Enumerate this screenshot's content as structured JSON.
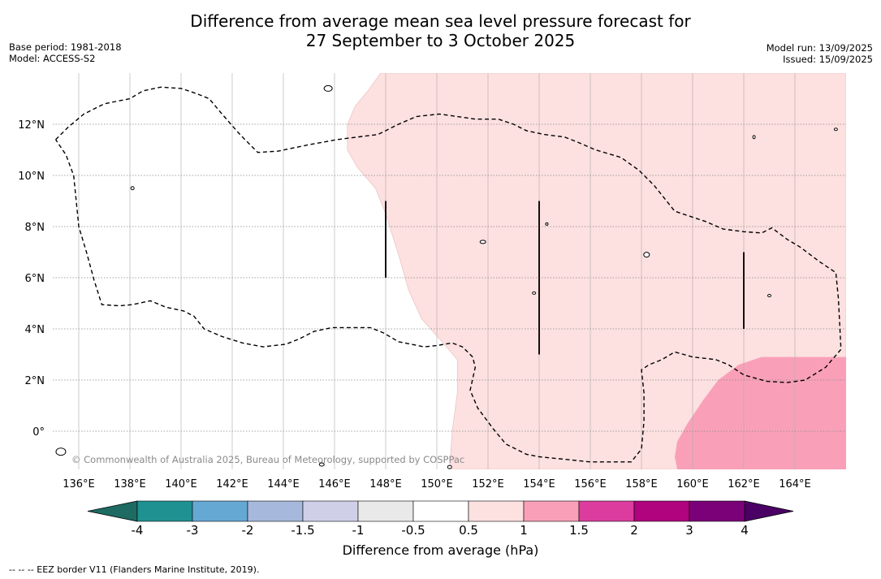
{
  "title": {
    "line1": "Difference from average mean sea level pressure forecast for",
    "line2": "27 September to 3 October 2025"
  },
  "meta_left": {
    "base_period": "Base period: 1981-2018",
    "model": "Model: ACCESS-S2"
  },
  "meta_right": {
    "model_run": "Model run: 13/09/2025",
    "issued": "Issued: 15/09/2025"
  },
  "map": {
    "lon_range": [
      135.0,
      166.0
    ],
    "lat_range": [
      -1.5,
      14.0
    ],
    "lon_ticks": [
      136,
      138,
      140,
      142,
      144,
      146,
      148,
      150,
      152,
      154,
      156,
      158,
      160,
      162,
      164
    ],
    "lon_tick_labels": [
      "136°E",
      "138°E",
      "140°E",
      "142°E",
      "144°E",
      "146°E",
      "148°E",
      "150°E",
      "152°E",
      "154°E",
      "156°E",
      "158°E",
      "160°E",
      "162°E",
      "164°E"
    ],
    "lat_ticks": [
      0,
      2,
      4,
      6,
      8,
      10,
      12
    ],
    "lat_tick_labels": [
      "0°",
      "2°N",
      "4°N",
      "6°N",
      "8°N",
      "10°N",
      "12°N"
    ],
    "grid": true,
    "copyright": "© Commonwealth of Australia 2025, Bureau of Meteorology, supported by COSPPac",
    "fill_colors": {
      "0.5_to_1": "#fde0e0",
      "1_to_1.5": "#f9a0b8"
    },
    "anomaly_region_0.5_to_1": [
      [
        147.8,
        14
      ],
      [
        166,
        14
      ],
      [
        166,
        -1.5
      ],
      [
        150.5,
        -1.5
      ],
      [
        150.6,
        0
      ],
      [
        150.8,
        1.5
      ],
      [
        150.8,
        2.8
      ],
      [
        150.2,
        3.5
      ],
      [
        149.4,
        4.4
      ],
      [
        148.9,
        5.5
      ],
      [
        148.5,
        6.9
      ],
      [
        148.0,
        8.5
      ],
      [
        147.6,
        9.5
      ],
      [
        146.9,
        10.3
      ],
      [
        146.5,
        11.0
      ],
      [
        146.5,
        12.0
      ],
      [
        146.8,
        12.7
      ],
      [
        147.3,
        13.3
      ]
    ],
    "anomaly_region_1_to_1.5": [
      [
        166,
        2.9
      ],
      [
        163.7,
        2.9
      ],
      [
        162.7,
        2.9
      ],
      [
        161.8,
        2.6
      ],
      [
        161.0,
        2.0
      ],
      [
        160.4,
        1.2
      ],
      [
        159.8,
        0.3
      ],
      [
        159.4,
        -0.4
      ],
      [
        159.3,
        -1.0
      ],
      [
        159.4,
        -1.5
      ],
      [
        166,
        -1.5
      ]
    ],
    "eez_polygon": [
      [
        135.1,
        11.4
      ],
      [
        135.6,
        11.9
      ],
      [
        136.2,
        12.4
      ],
      [
        137.0,
        12.8
      ],
      [
        138.0,
        13.0
      ],
      [
        138.5,
        13.3
      ],
      [
        139.2,
        13.45
      ],
      [
        140.0,
        13.4
      ],
      [
        140.6,
        13.2
      ],
      [
        141.1,
        13.0
      ],
      [
        141.6,
        12.4
      ],
      [
        142.3,
        11.6
      ],
      [
        143.0,
        10.9
      ],
      [
        143.8,
        10.95
      ],
      [
        145.0,
        11.2
      ],
      [
        146.1,
        11.4
      ],
      [
        147.7,
        11.6
      ],
      [
        148.5,
        12.0
      ],
      [
        149.2,
        12.3
      ],
      [
        150.1,
        12.4
      ],
      [
        150.8,
        12.3
      ],
      [
        151.5,
        12.2
      ],
      [
        152.4,
        12.2
      ],
      [
        153.0,
        12.0
      ],
      [
        153.5,
        11.75
      ],
      [
        154.2,
        11.6
      ],
      [
        155.0,
        11.5
      ],
      [
        155.5,
        11.3
      ],
      [
        156.2,
        11.0
      ],
      [
        157.2,
        10.7
      ],
      [
        157.9,
        10.2
      ],
      [
        158.5,
        9.6
      ],
      [
        159.3,
        8.6
      ],
      [
        160.5,
        8.2
      ],
      [
        161.2,
        7.9
      ],
      [
        162.0,
        7.8
      ],
      [
        162.7,
        7.75
      ],
      [
        163.1,
        7.95
      ],
      [
        163.7,
        7.5
      ],
      [
        164.2,
        7.2
      ],
      [
        165.0,
        6.6
      ],
      [
        165.6,
        6.2
      ],
      [
        165.7,
        5.2
      ],
      [
        165.8,
        3.2
      ],
      [
        165.2,
        2.5
      ],
      [
        164.4,
        2.0
      ],
      [
        163.7,
        1.9
      ],
      [
        162.9,
        1.95
      ],
      [
        162.0,
        2.2
      ],
      [
        161.4,
        2.6
      ],
      [
        160.9,
        2.8
      ],
      [
        160.0,
        2.9
      ],
      [
        159.3,
        3.1
      ],
      [
        158.8,
        2.8
      ],
      [
        158.3,
        2.6
      ],
      [
        158.0,
        2.4
      ],
      [
        158.1,
        1.5
      ],
      [
        158.1,
        0.4
      ],
      [
        158.0,
        -0.7
      ],
      [
        157.6,
        -1.2
      ],
      [
        157.2,
        -1.2
      ],
      [
        156.0,
        -1.2
      ],
      [
        155.0,
        -1.1
      ],
      [
        154.0,
        -1.0
      ],
      [
        153.5,
        -0.9
      ],
      [
        152.7,
        -0.5
      ],
      [
        152.2,
        0.1
      ],
      [
        151.6,
        0.9
      ],
      [
        151.3,
        1.6
      ],
      [
        151.5,
        2.5
      ],
      [
        151.4,
        2.9
      ],
      [
        151.0,
        3.3
      ],
      [
        150.6,
        3.45
      ],
      [
        150.0,
        3.35
      ],
      [
        149.5,
        3.3
      ],
      [
        148.5,
        3.5
      ],
      [
        147.9,
        3.85
      ],
      [
        147.4,
        4.05
      ],
      [
        146.5,
        4.05
      ],
      [
        145.9,
        4.05
      ],
      [
        145.2,
        3.9
      ],
      [
        144.6,
        3.6
      ],
      [
        144.1,
        3.4
      ],
      [
        143.2,
        3.3
      ],
      [
        142.4,
        3.45
      ],
      [
        141.6,
        3.7
      ],
      [
        140.9,
        4.0
      ],
      [
        140.5,
        4.5
      ],
      [
        140.1,
        4.7
      ],
      [
        139.4,
        4.85
      ],
      [
        138.8,
        5.1
      ],
      [
        138.1,
        4.95
      ],
      [
        137.6,
        4.9
      ],
      [
        136.9,
        4.95
      ],
      [
        136.6,
        5.9
      ],
      [
        136.3,
        7.0
      ],
      [
        136.0,
        8.0
      ],
      [
        135.9,
        9.0
      ],
      [
        135.8,
        10.0
      ],
      [
        135.5,
        10.8
      ],
      [
        135.1,
        11.4
      ]
    ],
    "vertical_lines": [
      {
        "lon": 148,
        "lat_from": 6.0,
        "lat_to": 9.0
      },
      {
        "lon": 154,
        "lat_from": 3.0,
        "lat_to": 9.0
      },
      {
        "lon": 162,
        "lat_from": 4.0,
        "lat_to": 7.0
      }
    ],
    "islands": [
      {
        "lon": 145.75,
        "lat": 13.4,
        "w": 10,
        "h": 7
      },
      {
        "lon": 138.1,
        "lat": 9.5,
        "w": 4,
        "h": 4
      },
      {
        "lon": 151.8,
        "lat": 7.4,
        "w": 7,
        "h": 4
      },
      {
        "lon": 158.2,
        "lat": 6.9,
        "w": 7,
        "h": 6
      },
      {
        "lon": 163.0,
        "lat": 5.3,
        "w": 4,
        "h": 3
      },
      {
        "lon": 153.8,
        "lat": 5.4,
        "w": 4,
        "h": 3
      },
      {
        "lon": 154.3,
        "lat": 8.1,
        "w": 3,
        "h": 3
      },
      {
        "lon": 162.4,
        "lat": 11.5,
        "w": 3,
        "h": 4
      },
      {
        "lon": 165.6,
        "lat": 11.8,
        "w": 4,
        "h": 3
      },
      {
        "lon": 135.3,
        "lat": -0.8,
        "w": 12,
        "h": 9
      },
      {
        "lon": 145.5,
        "lat": -1.3,
        "w": 6,
        "h": 4
      },
      {
        "lon": 150.5,
        "lat": -1.4,
        "w": 5,
        "h": 4
      }
    ]
  },
  "colorbar": {
    "colors": [
      "#1d6b63",
      "#1f9191",
      "#66a8d4",
      "#a6b9dc",
      "#cfd0e8",
      "#e9e9e9",
      "#ffffff",
      "#fde0e0",
      "#f9a0b8",
      "#dd3c9f",
      "#b0037e",
      "#7a0177",
      "#4a0065"
    ],
    "ticks": [
      "-4",
      "-3",
      "-2",
      "-1.5",
      "-1",
      "-0.5",
      "0.5",
      "1",
      "1.5",
      "2",
      "3",
      "4"
    ],
    "label": "Difference from average (hPa)"
  },
  "footnote": "--  --  -- EEZ border V11 (Flanders Marine Institute, 2019)."
}
